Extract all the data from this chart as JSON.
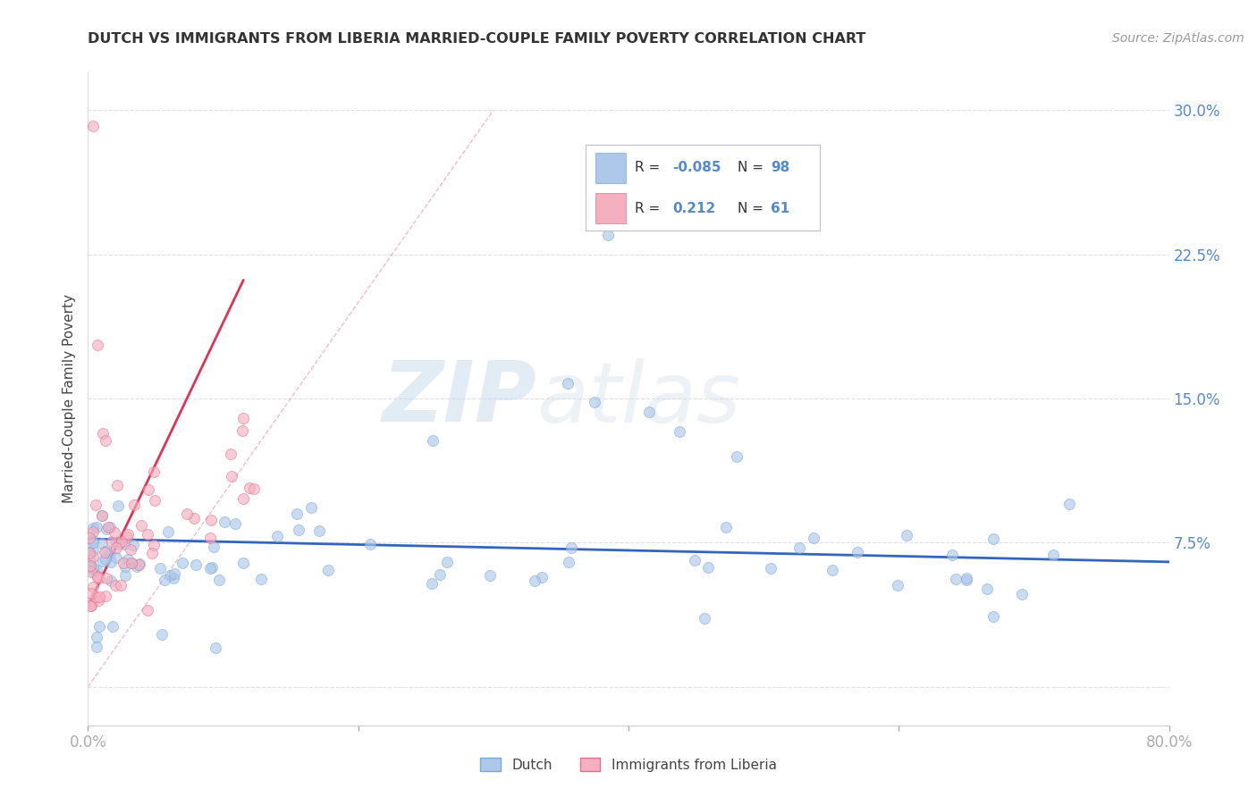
{
  "title": "DUTCH VS IMMIGRANTS FROM LIBERIA MARRIED-COUPLE FAMILY POVERTY CORRELATION CHART",
  "source": "Source: ZipAtlas.com",
  "ylabel": "Married-Couple Family Poverty",
  "xlim": [
    0.0,
    0.8
  ],
  "ylim": [
    -0.02,
    0.32
  ],
  "dutch_color": "#adc8e8",
  "liberia_color": "#f5b0c0",
  "dutch_edge": "#7aa8d8",
  "liberia_edge": "#e07090",
  "trend_dutch_color": "#3366bb",
  "trend_liberia_color": "#dd3355",
  "diagonal_color": "#cccccc",
  "R_dutch": -0.085,
  "N_dutch": 98,
  "R_liberia": 0.212,
  "N_liberia": 61,
  "background_color": "#ffffff",
  "grid_color": "#ddddee",
  "watermark_zip": "ZIP",
  "watermark_atlas": "atlas",
  "marker_size": 75,
  "alpha_scatter": 0.65,
  "tick_color": "#5588cc",
  "axis_label_color": "#444444",
  "title_color": "#333333",
  "source_color": "#999999"
}
